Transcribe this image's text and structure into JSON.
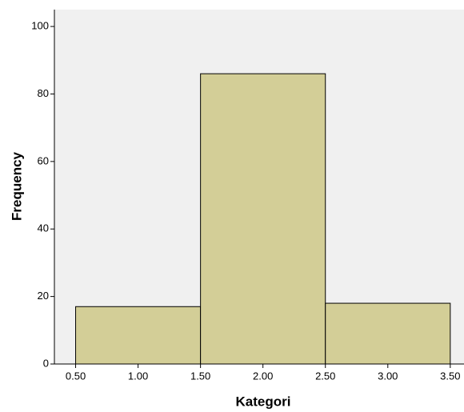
{
  "chart_data": {
    "type": "histogram",
    "x_label": "Kategori",
    "y_label": "Frequency",
    "bins": [
      0.5,
      1.5,
      2.5,
      3.5
    ],
    "values": [
      17,
      86,
      18
    ],
    "color": "#d3ce97",
    "xlim": [
      0.33,
      3.61
    ],
    "ylim": [
      0,
      105
    ],
    "xticks": [
      {
        "value": 0.5,
        "label": "0.50"
      },
      {
        "value": 1,
        "label": "1.00"
      },
      {
        "value": 1.5,
        "label": "1.50"
      },
      {
        "value": 2,
        "label": "2.00"
      },
      {
        "value": 2.5,
        "label": "2.50"
      },
      {
        "value": 3,
        "label": "3.00"
      },
      {
        "value": 3.5,
        "label": "3.50"
      }
    ],
    "yticks": [
      0,
      20,
      40,
      60,
      80,
      100
    ]
  }
}
